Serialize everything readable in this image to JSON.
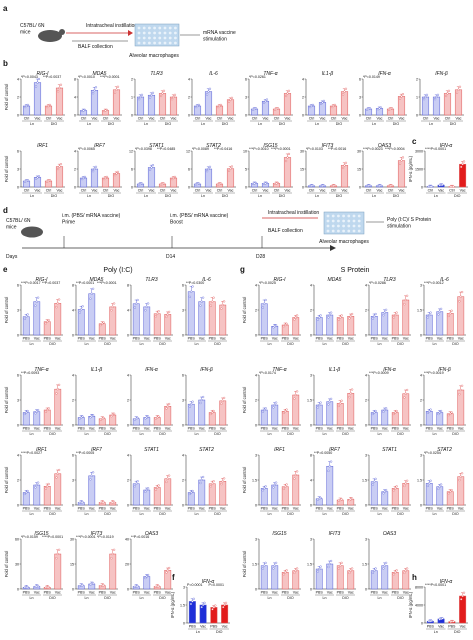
{
  "colors": {
    "ctrl": "#5b63d6",
    "vac": "#e05b5b",
    "ctrl_fill": "#c9cdf4",
    "vac_fill": "#f6c3c3",
    "dark_blue": "#1e2fd8",
    "dark_red": "#e21c1c",
    "grey": "#666666"
  },
  "panel_a": {
    "letter": "a",
    "mouse": "C57BL/ 6N\nmice",
    "instill": "Intratracheal instillation",
    "balf": "BALF collection",
    "cells": "Alveolar macrophages",
    "stim": "mRNA vaccine\nstimulation"
  },
  "panel_b": {
    "letter": "b",
    "ylabel": "Fold of control",
    "xcats": [
      "Ctrl",
      "Vac",
      "Ctrl",
      "Vac"
    ],
    "groups": [
      "Ln",
      "DIO"
    ],
    "row1": [
      {
        "gene": "RIG-I",
        "ylim": [
          0,
          4
        ],
        "values": [
          1,
          3.6,
          1,
          3.0
        ],
        "sig": [
          "*P=0.0043",
          "**P=0.0037"
        ]
      },
      {
        "gene": "MDA5",
        "ylim": [
          0,
          8
        ],
        "values": [
          1,
          5.5,
          1,
          5.6
        ],
        "sig": [
          "*P=0.0010",
          "***P<0.0001"
        ]
      },
      {
        "gene": "TLR3",
        "ylim": [
          0,
          2
        ],
        "values": [
          1,
          1.1,
          1.2,
          1.0
        ],
        "sig": []
      },
      {
        "gene": "IL-6",
        "ylim": [
          0,
          4
        ],
        "values": [
          1,
          2.6,
          1,
          1.7
        ],
        "sig": []
      },
      {
        "gene": "TNF-α",
        "ylim": [
          0,
          6
        ],
        "values": [
          1,
          2.3,
          1,
          3.6
        ],
        "sig": [
          "*P=0.0261"
        ]
      },
      {
        "gene": "IL1-β",
        "ylim": [
          0,
          4
        ],
        "values": [
          1,
          1.4,
          1,
          2.6
        ],
        "sig": []
      },
      {
        "gene": "IFN-α",
        "ylim": [
          0,
          6
        ],
        "values": [
          1,
          1.1,
          1,
          3.1
        ],
        "sig": [
          "*P=0.0149"
        ]
      },
      {
        "gene": "IFN-β",
        "ylim": [
          0,
          2
        ],
        "values": [
          1,
          1.0,
          1.2,
          1.4
        ],
        "sig": []
      }
    ],
    "row2": [
      {
        "gene": "IRF1",
        "ylim": [
          0,
          6
        ],
        "values": [
          1,
          1.6,
          1,
          3.4
        ],
        "sig": []
      },
      {
        "gene": "IRF7",
        "ylim": [
          0,
          4
        ],
        "values": [
          1,
          2.0,
          1,
          1.5
        ],
        "sig": [
          "*P=0.0065"
        ]
      },
      {
        "gene": "STAT1",
        "ylim": [
          0,
          12
        ],
        "values": [
          1,
          6.5,
          1,
          3.0
        ],
        "sig": [
          "*P=0.0398",
          "**P=0.0485"
        ]
      },
      {
        "gene": "STAT2",
        "ylim": [
          0,
          12
        ],
        "values": [
          1,
          6.0,
          1,
          6.1
        ],
        "sig": [
          "*P=0.0089",
          "**P=0.0416"
        ]
      },
      {
        "gene": "ISG15",
        "ylim": [
          0,
          10
        ],
        "values": [
          1,
          1.0,
          1,
          8.2
        ],
        "sig": [
          "***P=0.0010",
          "***P<0.0001"
        ]
      },
      {
        "gene": "IFIT3",
        "ylim": [
          0,
          30
        ],
        "values": [
          1,
          1.0,
          1,
          18
        ],
        "sig": [
          "*P=0.0103",
          "**P=0.0016"
        ]
      },
      {
        "gene": "OAS3",
        "ylim": [
          0,
          30
        ],
        "values": [
          1,
          1.0,
          1,
          22
        ],
        "sig": [
          "***P=0.0023",
          "***P=0.0004"
        ]
      }
    ]
  },
  "panel_c": {
    "letter": "c",
    "title": "IFN-α",
    "ylabel": "IFN-α (pg/mL)",
    "ylim": [
      0,
      3000
    ],
    "values": [
      40,
      160,
      30,
      1900
    ],
    "sig": "****P<0.0001"
  },
  "panel_d": {
    "letter": "d",
    "mouse": "C57BL/ 6N\nmice",
    "days": "Days",
    "prime": "i.m. (PBS/ mRNA vaccine)\nPrime",
    "boost": "i.m. (PBS/ mRNA vaccine)\nBoost",
    "instill": "Intratracheal instillation",
    "balf": "BALF collection",
    "cells": "Alveolar macrophages",
    "stim": "Poly (I:C)/ S Protein\nstimulation",
    "d14": "D14",
    "d28": "D28"
  },
  "panel_e": {
    "letter": "e",
    "title": "Poly (I:C)",
    "ylabel": "Fold of control",
    "xcats": [
      "PBS",
      "Vac",
      "PBS",
      "Vac"
    ],
    "groups": [
      "Ln",
      "DIO"
    ],
    "rows": [
      [
        {
          "gene": "RIG-I",
          "ylim": [
            0,
            6
          ],
          "values": [
            2.2,
            4.0,
            1.6,
            3.8
          ],
          "sig": [
            "***P=0.0017",
            "**P=0.0037"
          ]
        },
        {
          "gene": "MDA5",
          "ylim": [
            0,
            8
          ],
          "values": [
            4.1,
            6.6,
            1.8,
            4.5
          ],
          "sig": [
            "**P=0.0001",
            "***P<0.0001"
          ]
        },
        {
          "gene": "TLR3",
          "ylim": [
            0,
            8
          ],
          "values": [
            5.0,
            4.5,
            3.4,
            3.3
          ],
          "sig": []
        },
        {
          "gene": "IL-6",
          "ylim": [
            0,
            6
          ],
          "values": [
            5.2,
            4.0,
            4.0,
            3.6
          ],
          "sig": [
            "**P=0.0300"
          ]
        }
      ],
      [
        {
          "gene": "TNF-α",
          "ylim": [
            0,
            6
          ],
          "values": [
            1.5,
            1.6,
            1.8,
            4.3
          ],
          "sig": [
            "**P=0.0093"
          ]
        },
        {
          "gene": "IL1-β",
          "ylim": [
            0,
            4
          ],
          "values": [
            0.6,
            0.7,
            0.5,
            0.8
          ],
          "sig": []
        },
        {
          "gene": "IFN-α",
          "ylim": [
            0,
            4
          ],
          "values": [
            0.5,
            0.6,
            0.6,
            1.5
          ],
          "sig": []
        },
        {
          "gene": "IFN-β",
          "ylim": [
            0,
            6
          ],
          "values": [
            2.5,
            3.0,
            1.5,
            2.9
          ],
          "sig": []
        }
      ],
      [
        {
          "gene": "IRF1",
          "ylim": [
            0,
            4
          ],
          "values": [
            1.0,
            1.6,
            1.5,
            2.5
          ],
          "sig": [
            "****P=0.0027"
          ]
        },
        {
          "gene": "IRF7",
          "ylim": [
            0,
            6
          ],
          "values": [
            0.3,
            3.5,
            0.3,
            0.3
          ],
          "sig": [
            "**P=0.0005"
          ]
        },
        {
          "gene": "STAT1",
          "ylim": [
            0,
            4
          ],
          "values": [
            1.7,
            1.2,
            1.4,
            2.1
          ],
          "sig": []
        },
        {
          "gene": "STAT2",
          "ylim": [
            0,
            4
          ],
          "values": [
            1.0,
            2.0,
            1.7,
            1.9
          ],
          "sig": []
        }
      ],
      [
        {
          "gene": "ISG15",
          "ylim": [
            0,
            60
          ],
          "values": [
            2,
            3,
            2,
            42
          ],
          "sig": [
            "*P=0.0159",
            "****P=0.0001"
          ]
        },
        {
          "gene": "IFIT3",
          "ylim": [
            0,
            30
          ],
          "values": [
            2,
            3,
            2,
            21
          ],
          "sig": [
            "***P=0.0001",
            "*P=0.0119"
          ]
        },
        {
          "gene": "OAS3",
          "ylim": [
            0,
            40
          ],
          "values": [
            2,
            10,
            2,
            15
          ],
          "sig": [
            "**P=0.0016"
          ]
        }
      ]
    ]
  },
  "panel_f": {
    "letter": "f",
    "title": "IFN-α",
    "ylabel": "IFN-α (pg/mL)",
    "ylim": [
      0,
      3
    ],
    "values": [
      1.8,
      1.5,
      1.3,
      1.5
    ],
    "sig": [
      "P=0.0001",
      "P=0.0001"
    ]
  },
  "panel_g": {
    "letter": "g",
    "title": "S Protein",
    "ylabel": "Fold of control",
    "xcats": [
      "PBS",
      "Vac",
      "PBS",
      "Vac"
    ],
    "groups": [
      "Ln",
      "DIO"
    ],
    "rows": [
      [
        {
          "gene": "RIG-I",
          "ylim": [
            0,
            4
          ],
          "values": [
            2.5,
            0.7,
            0.8,
            1.4
          ],
          "sig": [
            "*P=0.0025"
          ]
        },
        {
          "gene": "MDA5",
          "ylim": [
            0,
            4
          ],
          "values": [
            1.4,
            1.6,
            1.4,
            1.5
          ],
          "sig": []
        },
        {
          "gene": "TLR3",
          "ylim": [
            0,
            4
          ],
          "values": [
            1.5,
            1.8,
            1.6,
            2.8
          ],
          "sig": [
            "*P=0.0286"
          ]
        },
        {
          "gene": "IL-6",
          "ylim": [
            0,
            3
          ],
          "values": [
            1.2,
            1.4,
            1.3,
            2.3
          ],
          "sig": [
            "***P=0.0012"
          ]
        }
      ],
      [
        {
          "gene": "TNF-α",
          "ylim": [
            0,
            4
          ],
          "values": [
            1.2,
            1.6,
            1.1,
            2.4
          ],
          "sig": [
            "*P=0.0174"
          ]
        },
        {
          "gene": "IL1-β",
          "ylim": [
            0,
            3
          ],
          "values": [
            1.2,
            1.4,
            1.3,
            1.9
          ],
          "sig": []
        },
        {
          "gene": "IFN-α",
          "ylim": [
            0,
            4
          ],
          "values": [
            1.0,
            1.2,
            1.0,
            2.5
          ],
          "sig": [
            "***P=0.0009"
          ]
        },
        {
          "gene": "IFN-β",
          "ylim": [
            0,
            4
          ],
          "values": [
            1.1,
            1.0,
            0.9,
            2.8
          ],
          "sig": [
            "***P=0.0019"
          ]
        }
      ],
      [
        {
          "gene": "IRF1",
          "ylim": [
            0,
            3
          ],
          "values": [
            1.0,
            1.2,
            1.1,
            1.8
          ],
          "sig": []
        },
        {
          "gene": "IRF7",
          "ylim": [
            0,
            8
          ],
          "values": [
            1.0,
            6.2,
            0.8,
            0.9
          ],
          "sig": [
            "**P=0.0050"
          ]
        },
        {
          "gene": "STAT1",
          "ylim": [
            0,
            3
          ],
          "values": [
            1.4,
            0.8,
            1.0,
            1.3
          ],
          "sig": []
        },
        {
          "gene": "STAT2",
          "ylim": [
            0,
            3
          ],
          "values": [
            1.3,
            1.1,
            0.8,
            1.7
          ],
          "sig": [
            "*P=0.0254"
          ]
        }
      ],
      [
        {
          "gene": "ISG15",
          "ylim": [
            0,
            3
          ],
          "values": [
            1.4,
            1.4,
            1.0,
            1.1
          ],
          "sig": []
        },
        {
          "gene": "IFIT3",
          "ylim": [
            0,
            3
          ],
          "values": [
            1.2,
            1.5,
            1.4,
            1.1
          ],
          "sig": []
        },
        {
          "gene": "OAS3",
          "ylim": [
            0,
            3
          ],
          "values": [
            1.1,
            1.4,
            1.0,
            1.1
          ],
          "sig": []
        }
      ]
    ]
  },
  "panel_h": {
    "letter": "h",
    "title": "IFN-α",
    "ylabel": "IFN-α (pg/mL)",
    "ylim": [
      0,
      8000
    ],
    "values": [
      400,
      900,
      300,
      6000
    ],
    "sig": "****P<0.0001"
  }
}
